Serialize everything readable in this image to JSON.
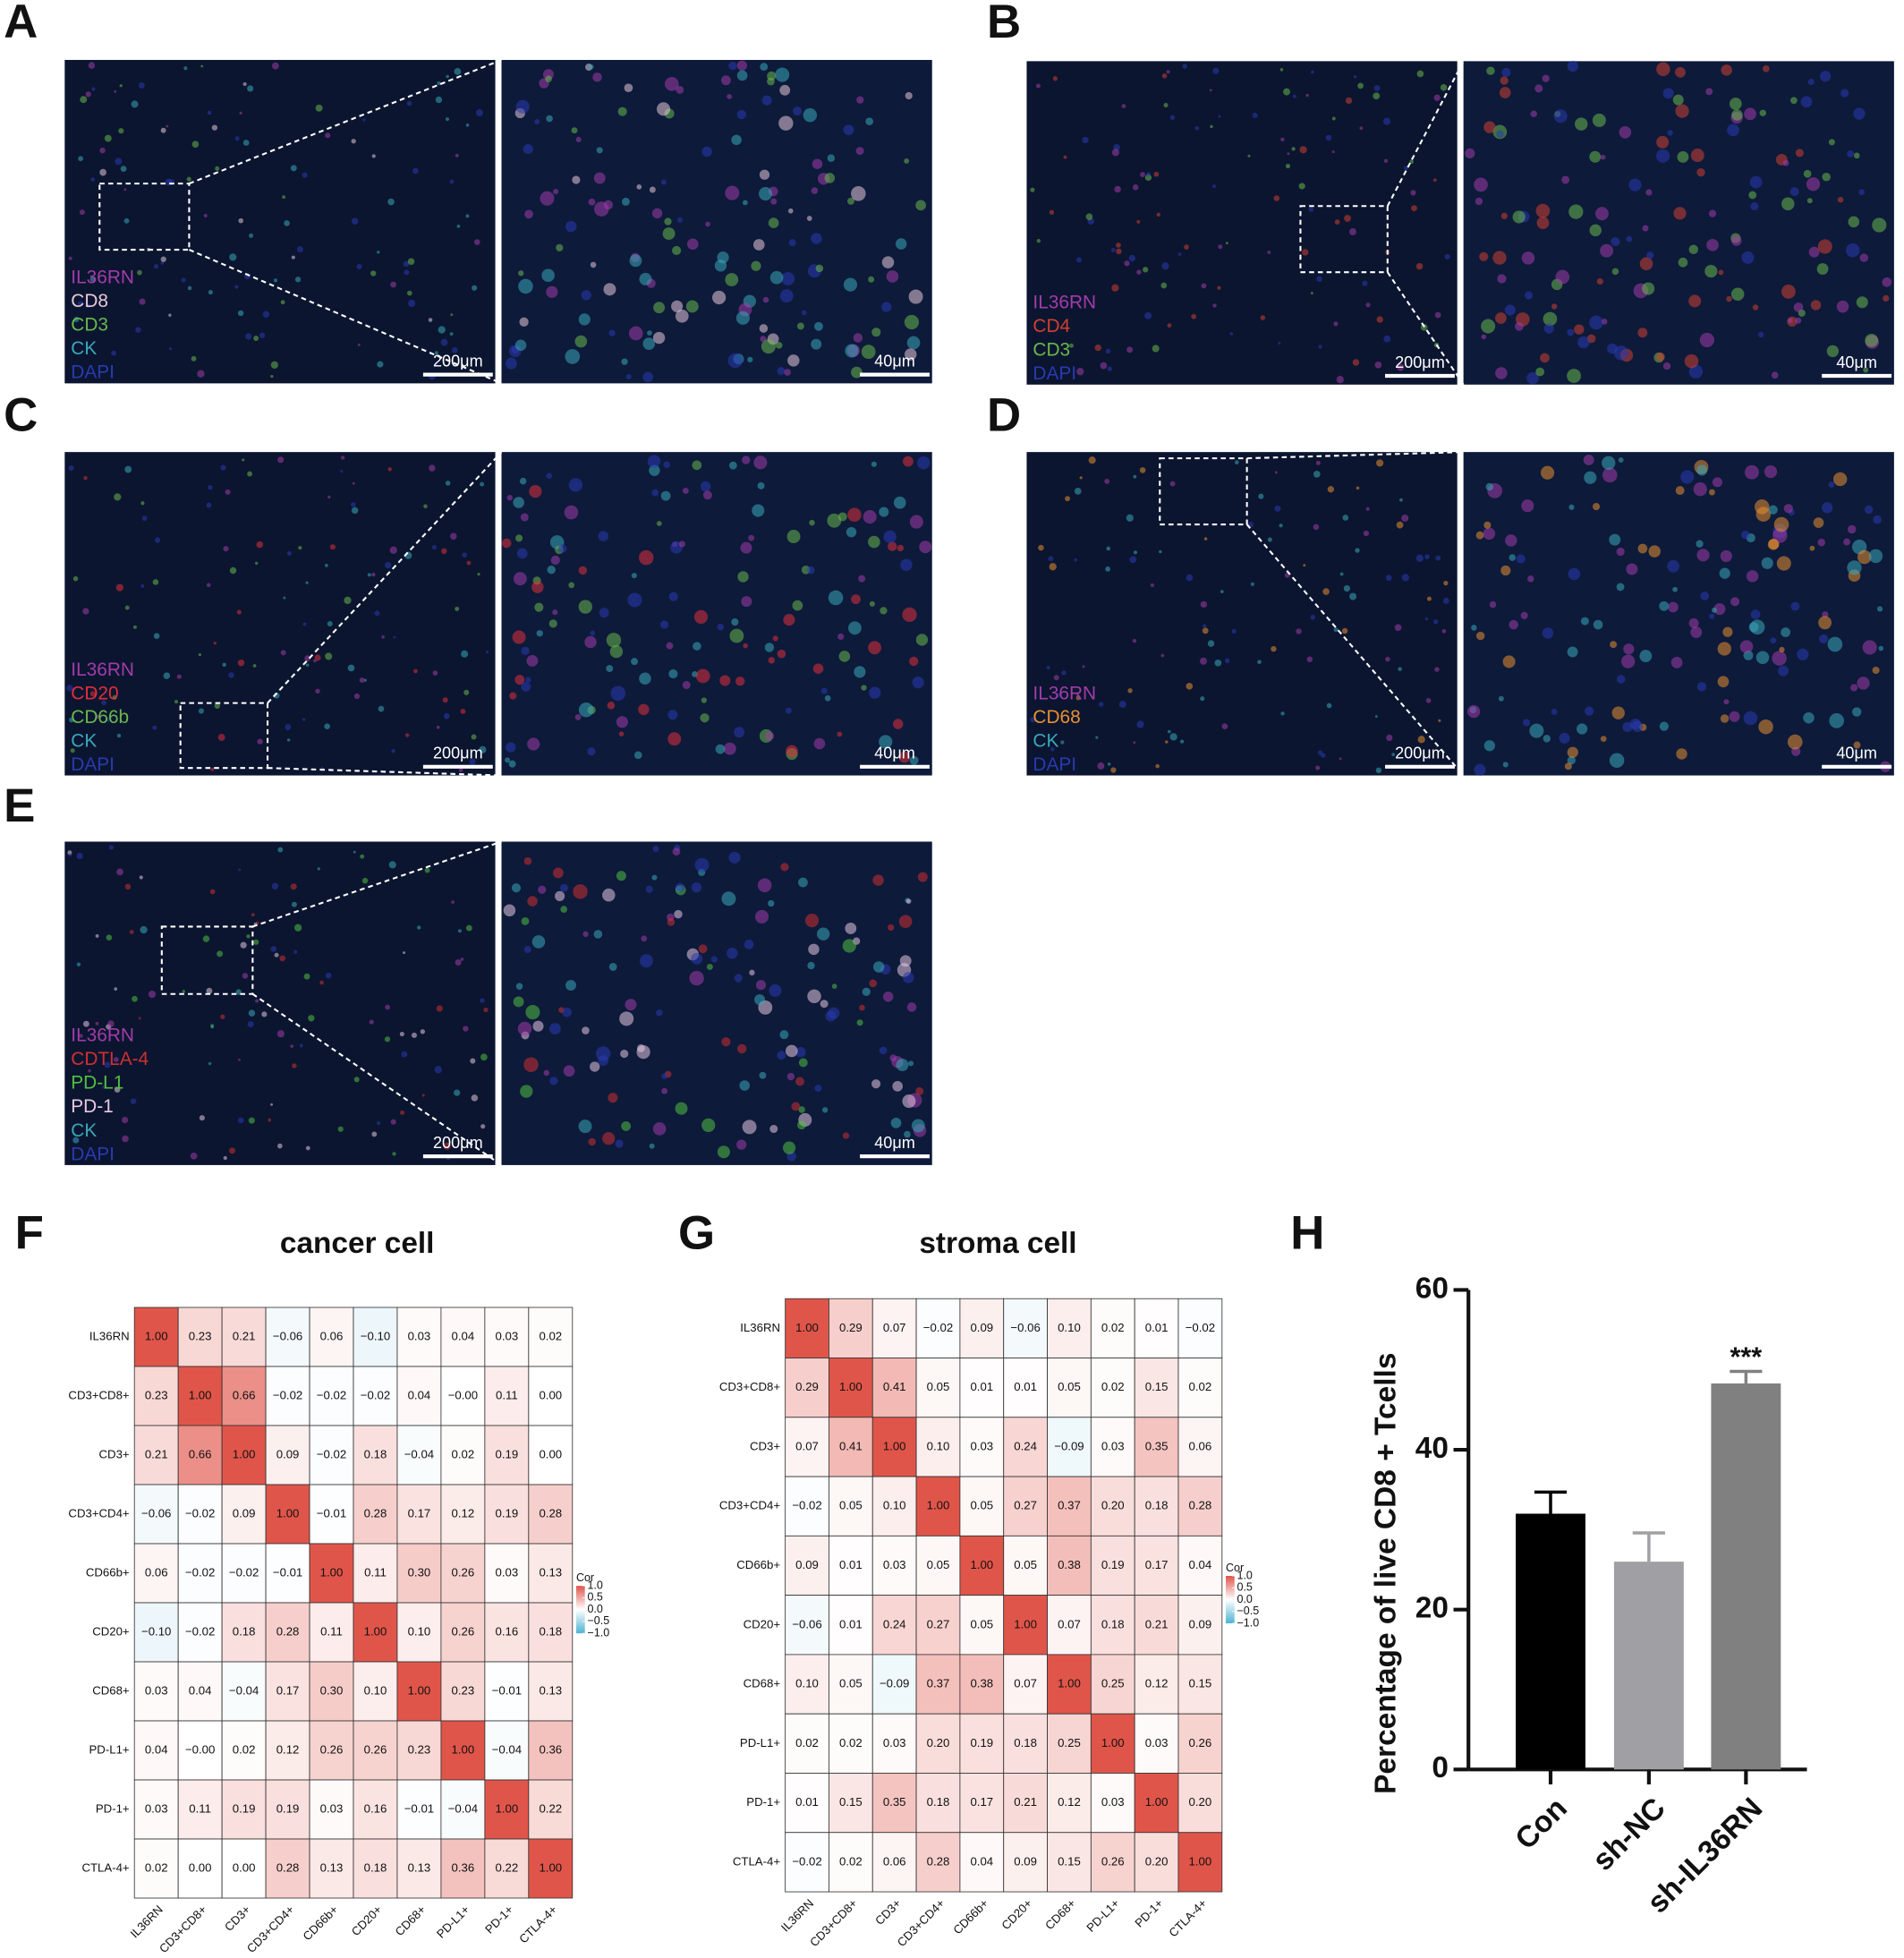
{
  "figure_panels": [
    {
      "label": "A",
      "markers": [
        {
          "text": "IL36RN",
          "color": "#a23ca8"
        },
        {
          "text": "CD8",
          "color": "#e8c8d8"
        },
        {
          "text": "CD3",
          "color": "#6ab84a"
        },
        {
          "text": "CK",
          "color": "#3aa8b8"
        },
        {
          "text": "DAPI",
          "color": "#2a3ab0"
        }
      ],
      "scale_bars": [
        "200μm",
        "40μm"
      ]
    },
    {
      "label": "B",
      "markers": [
        {
          "text": "IL36RN",
          "color": "#a23ca8"
        },
        {
          "text": "CD4",
          "color": "#d04030"
        },
        {
          "text": "CD3",
          "color": "#6ab84a"
        },
        {
          "text": "DAPI",
          "color": "#2a3ab0"
        }
      ],
      "scale_bars": [
        "200μm",
        "40μm"
      ]
    },
    {
      "label": "C",
      "markers": [
        {
          "text": "IL36RN",
          "color": "#a23ca8"
        },
        {
          "text": "CD20",
          "color": "#e0303a"
        },
        {
          "text": "CD66b",
          "color": "#6ab84a"
        },
        {
          "text": "CK",
          "color": "#3aa8b8"
        },
        {
          "text": "DAPI",
          "color": "#2a3ab0"
        }
      ],
      "scale_bars": [
        "200μm",
        "40μm"
      ]
    },
    {
      "label": "D",
      "markers": [
        {
          "text": "IL36RN",
          "color": "#a23ca8"
        },
        {
          "text": "CD68",
          "color": "#e89030"
        },
        {
          "text": "CK",
          "color": "#3aa8b8"
        },
        {
          "text": "DAPI",
          "color": "#2a3ab0"
        }
      ],
      "scale_bars": [
        "200μm",
        "40μm"
      ]
    },
    {
      "label": "E",
      "markers": [
        {
          "text": "IL36RN",
          "color": "#a23ca8"
        },
        {
          "text": "CDTLA-4",
          "color": "#d03030"
        },
        {
          "text": "PD-L1",
          "color": "#50c040"
        },
        {
          "text": "PD-1",
          "color": "#e8c8e0"
        },
        {
          "text": "CK",
          "color": "#3aa8b8"
        },
        {
          "text": "DAPI",
          "color": "#2a3ab0"
        }
      ],
      "scale_bars": [
        "200μm",
        "40μm"
      ]
    }
  ],
  "chart_data": [
    {
      "type": "heatmap",
      "label": "F",
      "title": "cancer cell",
      "categories": [
        "IL36RN",
        "CD3+CD8+",
        "CD3+",
        "CD3+CD4+",
        "CD66b+",
        "CD20+",
        "CD68+",
        "PD-L1+",
        "PD-1+",
        "CTLA-4+"
      ],
      "values": [
        [
          1.0,
          0.23,
          0.21,
          -0.06,
          0.06,
          -0.1,
          0.03,
          0.04,
          0.03,
          0.02
        ],
        [
          0.23,
          1.0,
          0.66,
          -0.02,
          -0.02,
          -0.02,
          0.04,
          -0.0,
          0.11,
          0.0
        ],
        [
          0.21,
          0.66,
          1.0,
          0.09,
          -0.02,
          0.18,
          -0.04,
          0.02,
          0.19,
          0.0
        ],
        [
          -0.06,
          -0.02,
          0.09,
          1.0,
          -0.01,
          0.28,
          0.17,
          0.12,
          0.19,
          0.28
        ],
        [
          0.06,
          -0.02,
          -0.02,
          -0.01,
          1.0,
          0.11,
          0.3,
          0.26,
          0.03,
          0.13
        ],
        [
          -0.1,
          -0.02,
          0.18,
          0.28,
          0.11,
          1.0,
          0.1,
          0.26,
          0.16,
          0.18
        ],
        [
          0.03,
          0.04,
          -0.04,
          0.17,
          0.3,
          0.1,
          1.0,
          0.23,
          -0.01,
          0.13
        ],
        [
          0.04,
          -0.0,
          0.02,
          0.12,
          0.26,
          0.26,
          0.23,
          1.0,
          -0.04,
          0.36
        ],
        [
          0.03,
          0.11,
          0.19,
          0.19,
          0.03,
          0.16,
          -0.01,
          -0.04,
          1.0,
          0.22
        ],
        [
          0.02,
          0.0,
          0.0,
          0.28,
          0.13,
          0.18,
          0.13,
          0.36,
          0.22,
          1.0
        ]
      ],
      "value_labels": [
        [
          "1.00",
          "0.23",
          "0.21",
          "−0.06",
          "0.06",
          "−0.10",
          "0.03",
          "0.04",
          "0.03",
          "0.02"
        ],
        [
          "0.23",
          "1.00",
          "0.66",
          "−0.02",
          "−0.02",
          "−0.02",
          "0.04",
          "−0.00",
          "0.11",
          "0.00"
        ],
        [
          "0.21",
          "0.66",
          "1.00",
          "0.09",
          "−0.02",
          "0.18",
          "−0.04",
          "0.02",
          "0.19",
          "0.00"
        ],
        [
          "−0.06",
          "−0.02",
          "0.09",
          "1.00",
          "−0.01",
          "0.28",
          "0.17",
          "0.12",
          "0.19",
          "0.28"
        ],
        [
          "0.06",
          "−0.02",
          "−0.02",
          "−0.01",
          "1.00",
          "0.11",
          "0.30",
          "0.26",
          "0.03",
          "0.13"
        ],
        [
          "−0.10",
          "−0.02",
          "0.18",
          "0.28",
          "0.11",
          "1.00",
          "0.10",
          "0.26",
          "0.16",
          "0.18"
        ],
        [
          "0.03",
          "0.04",
          "−0.04",
          "0.17",
          "0.30",
          "0.10",
          "1.00",
          "0.23",
          "−0.01",
          "0.13"
        ],
        [
          "0.04",
          "−0.00",
          "0.02",
          "0.12",
          "0.26",
          "0.26",
          "0.23",
          "1.00",
          "−0.04",
          "0.36"
        ],
        [
          "0.03",
          "0.11",
          "0.19",
          "0.19",
          "0.03",
          "0.16",
          "−0.01",
          "−0.04",
          "1.00",
          "0.22"
        ],
        [
          "0.02",
          "0.00",
          "0.00",
          "0.28",
          "0.13",
          "0.18",
          "0.13",
          "0.36",
          "0.22",
          "1.00"
        ]
      ],
      "legend_title": "Cor",
      "colorbar_lim": [
        -1,
        1
      ],
      "colorbar_ticks": [
        {
          "value": 1,
          "label": "1.0"
        },
        {
          "value": 0.5,
          "label": "0.5"
        },
        {
          "value": 0,
          "label": "0.0"
        },
        {
          "value": -0.5,
          "label": "−0.5"
        },
        {
          "value": -1,
          "label": "−1.0"
        }
      ],
      "color_low": "#4eb3d3",
      "color_mid": "#ffffff",
      "color_high": "#e0554a"
    },
    {
      "type": "heatmap",
      "label": "G",
      "title": "stroma cell",
      "categories": [
        "IL36RN",
        "CD3+CD8+",
        "CD3+",
        "CD3+CD4+",
        "CD66b+",
        "CD20+",
        "CD68+",
        "PD-L1+",
        "PD-1+",
        "CTLA-4+"
      ],
      "values": [
        [
          1.0,
          0.29,
          0.07,
          -0.02,
          0.09,
          -0.06,
          0.1,
          0.02,
          0.01,
          -0.02
        ],
        [
          0.29,
          1.0,
          0.41,
          0.05,
          0.01,
          0.01,
          0.05,
          0.02,
          0.15,
          0.02
        ],
        [
          0.07,
          0.41,
          1.0,
          0.1,
          0.03,
          0.24,
          -0.09,
          0.03,
          0.35,
          0.06
        ],
        [
          -0.02,
          0.05,
          0.1,
          1.0,
          0.05,
          0.27,
          0.37,
          0.2,
          0.18,
          0.28
        ],
        [
          0.09,
          0.01,
          0.03,
          0.05,
          1.0,
          0.05,
          0.38,
          0.19,
          0.17,
          0.04
        ],
        [
          -0.06,
          0.01,
          0.24,
          0.27,
          0.05,
          1.0,
          0.07,
          0.18,
          0.21,
          0.09
        ],
        [
          0.1,
          0.05,
          -0.09,
          0.37,
          0.38,
          0.07,
          1.0,
          0.25,
          0.12,
          0.15
        ],
        [
          0.02,
          0.02,
          0.03,
          0.2,
          0.19,
          0.18,
          0.25,
          1.0,
          0.03,
          0.26
        ],
        [
          0.01,
          0.15,
          0.35,
          0.18,
          0.17,
          0.21,
          0.12,
          0.03,
          1.0,
          0.2
        ],
        [
          -0.02,
          0.02,
          0.06,
          0.28,
          0.04,
          0.09,
          0.15,
          0.26,
          0.2,
          1.0
        ]
      ],
      "value_labels": [
        [
          "1.00",
          "0.29",
          "0.07",
          "−0.02",
          "0.09",
          "−0.06",
          "0.10",
          "0.02",
          "0.01",
          "−0.02"
        ],
        [
          "0.29",
          "1.00",
          "0.41",
          "0.05",
          "0.01",
          "0.01",
          "0.05",
          "0.02",
          "0.15",
          "0.02"
        ],
        [
          "0.07",
          "0.41",
          "1.00",
          "0.10",
          "0.03",
          "0.24",
          "−0.09",
          "0.03",
          "0.35",
          "0.06"
        ],
        [
          "−0.02",
          "0.05",
          "0.10",
          "1.00",
          "0.05",
          "0.27",
          "0.37",
          "0.20",
          "0.18",
          "0.28"
        ],
        [
          "0.09",
          "0.01",
          "0.03",
          "0.05",
          "1.00",
          "0.05",
          "0.38",
          "0.19",
          "0.17",
          "0.04"
        ],
        [
          "−0.06",
          "0.01",
          "0.24",
          "0.27",
          "0.05",
          "1.00",
          "0.07",
          "0.18",
          "0.21",
          "0.09"
        ],
        [
          "0.10",
          "0.05",
          "−0.09",
          "0.37",
          "0.38",
          "0.07",
          "1.00",
          "0.25",
          "0.12",
          "0.15"
        ],
        [
          "0.02",
          "0.02",
          "0.03",
          "0.20",
          "0.19",
          "0.18",
          "0.25",
          "1.00",
          "0.03",
          "0.26"
        ],
        [
          "0.01",
          "0.15",
          "0.35",
          "0.18",
          "0.17",
          "0.21",
          "0.12",
          "0.03",
          "1.00",
          "0.20"
        ],
        [
          "−0.02",
          "0.02",
          "0.06",
          "0.28",
          "0.04",
          "0.09",
          "0.15",
          "0.26",
          "0.20",
          "1.00"
        ]
      ],
      "legend_title": "Cor",
      "colorbar_lim": [
        -1,
        1
      ],
      "colorbar_ticks": [
        {
          "value": 1,
          "label": "1.0"
        },
        {
          "value": 0.5,
          "label": "0.5"
        },
        {
          "value": 0,
          "label": "0.0"
        },
        {
          "value": -0.5,
          "label": "−0.5"
        },
        {
          "value": -1,
          "label": "−1.0"
        }
      ],
      "color_low": "#4eb3d3",
      "color_mid": "#ffffff",
      "color_high": "#e0554a"
    },
    {
      "type": "bar",
      "label": "H",
      "y_label": "Percentage of live CD8 + Tcells",
      "categories": [
        "Con",
        "sh-NC",
        "sh-IL36RN"
      ],
      "values": [
        32,
        26,
        48.3
      ],
      "errors": [
        2.7,
        3.6,
        1.5
      ],
      "colors": [
        "#000000",
        "#a0a0a4",
        "#808080"
      ],
      "significance_labels": [
        null,
        null,
        "***"
      ],
      "ylim": [
        0,
        60
      ],
      "yticks": [
        0,
        20,
        40,
        60
      ]
    }
  ]
}
